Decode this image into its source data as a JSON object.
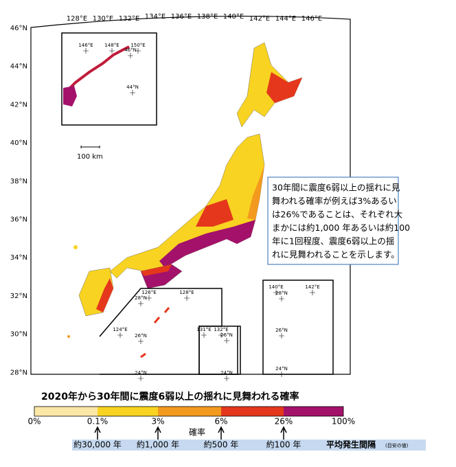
{
  "map": {
    "lon_labels": [
      "128°E",
      "130°E",
      "132°E",
      "134°E",
      "136°E",
      "138°E",
      "140°E",
      "142°E",
      "144°E",
      "146°E"
    ],
    "lat_labels": [
      "46°N",
      "44°N",
      "42°N",
      "40°N",
      "38°N",
      "36°N",
      "34°N",
      "32°N",
      "30°N",
      "28°N"
    ],
    "inset_northeast": {
      "labels": [
        "146°E",
        "148°E",
        "150°E",
        "46°N",
        "44°N"
      ]
    },
    "inset_southwest": {
      "labels": [
        "126°E",
        "28°N",
        "128°E",
        "124°E",
        "26°N",
        "24°N"
      ]
    },
    "inset_south": {
      "labels": [
        "131°E",
        "132°E",
        "26°N",
        "24°N"
      ]
    },
    "inset_southeast": {
      "labels": [
        "140°E",
        "142°E",
        "28°N",
        "26°N",
        "24°N"
      ]
    },
    "scale_bar": "100 km"
  },
  "annotation": {
    "lines": [
      "30年間に震度6弱以上の揺れに見",
      "舞われる確率が例えば3%あるい",
      "は26%であることは、それぞれ大",
      "まかには約1,000 年あるいは約100",
      "年に1回程度、震度6弱以上の揺",
      "れに見舞われることを示します。"
    ]
  },
  "legend": {
    "title": "2020年から30年間に震度6弱以上の揺れに見舞われる確率",
    "colors": [
      "#fbe7a6",
      "#f8d321",
      "#f39a1e",
      "#e5371c",
      "#a3116a"
    ],
    "ticks": [
      "0%",
      "0.1%",
      "3%",
      "6%",
      "26%",
      "100%"
    ],
    "axis_label": "確率",
    "intervals": [
      "約30,000 年",
      "約1,000 年",
      "約500 年",
      "約100 年"
    ],
    "interval_title": "平均発生間隔",
    "interval_note": "(目安の値)"
  }
}
